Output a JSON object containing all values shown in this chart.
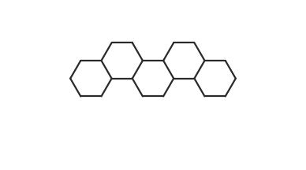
{
  "bg_color": "#ffffff",
  "line_color": "#2a2a2a",
  "lw": 1.6,
  "lw2": 2.8,
  "figsize": [
    3.88,
    2.16
  ],
  "dpi": 100,
  "font_size": 7.5,
  "font_size_small": 6.5
}
